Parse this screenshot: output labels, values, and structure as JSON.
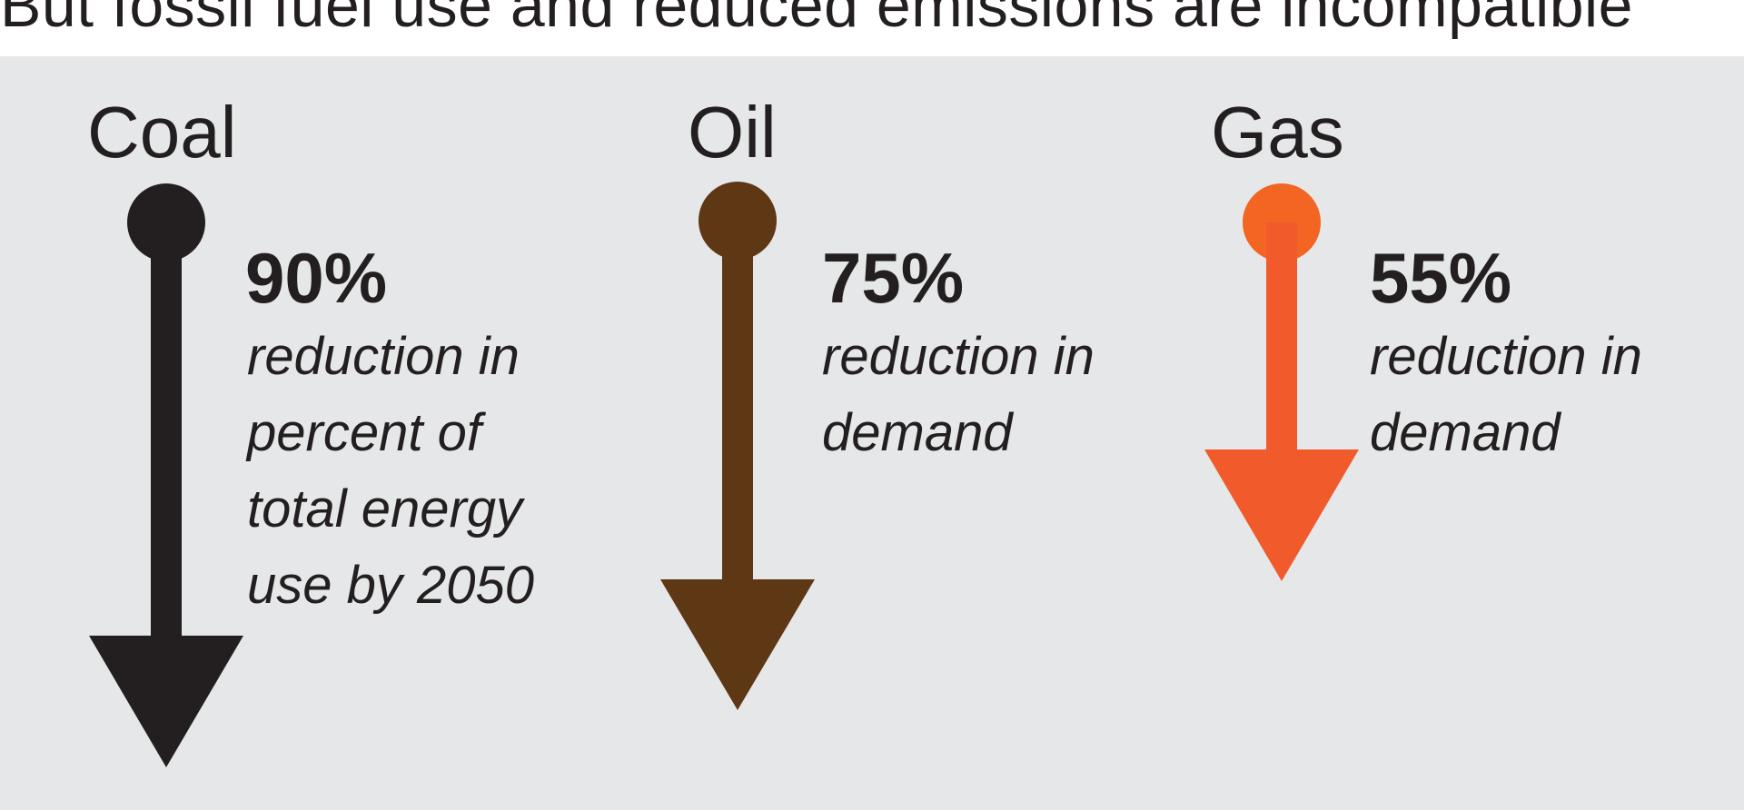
{
  "headline": "But fossil fuel use and reduced emissions are incompatible",
  "fuels": [
    {
      "name": "Coal",
      "percent": "90%",
      "description": "reduction in\npercent of\ntotal energy\nuse by 2050",
      "color": "#231f20",
      "arrow_color": "#231f20",
      "reduction": 90
    },
    {
      "name": "Oil",
      "percent": "75%",
      "description": "reduction in\ndemand",
      "color": "#5e3714",
      "arrow_color": "#5e3714",
      "reduction": 75
    },
    {
      "name": "Gas",
      "percent": "55%",
      "description": "reduction in\ndemand",
      "color": "#f26522",
      "arrow_color": "#f15a2b",
      "reduction": 55
    }
  ]
}
